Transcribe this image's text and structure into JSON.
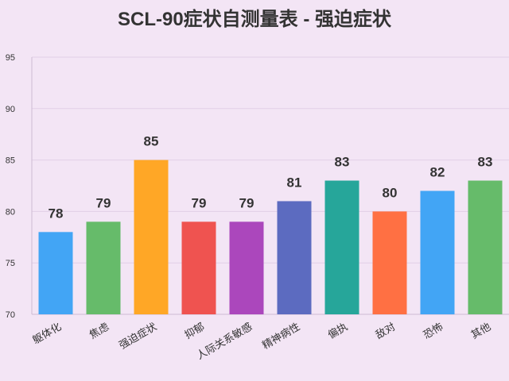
{
  "chart_data": {
    "type": "bar",
    "title": "SCL-90症状自测量表 - 强迫症状",
    "xlabel": "",
    "ylabel": "",
    "categories": [
      "躯体化",
      "焦虑",
      "强迫症状",
      "抑郁",
      "人际关系敏感",
      "精神病性",
      "偏执",
      "敌对",
      "恐怖",
      "其他"
    ],
    "values": [
      78,
      79,
      85,
      79,
      79,
      81,
      83,
      80,
      82,
      83
    ],
    "colors": [
      "#42a5f5",
      "#66bb6a",
      "#ffa726",
      "#ef5350",
      "#ab47bc",
      "#5c6bc0",
      "#26a69a",
      "#ff7043",
      "#42a5f5",
      "#66bb6a"
    ],
    "ylim": [
      70,
      95
    ],
    "yticks": [
      70,
      75,
      80,
      85,
      90,
      95
    ],
    "grid": true,
    "legend": "none",
    "background": "#f3e5f5"
  }
}
